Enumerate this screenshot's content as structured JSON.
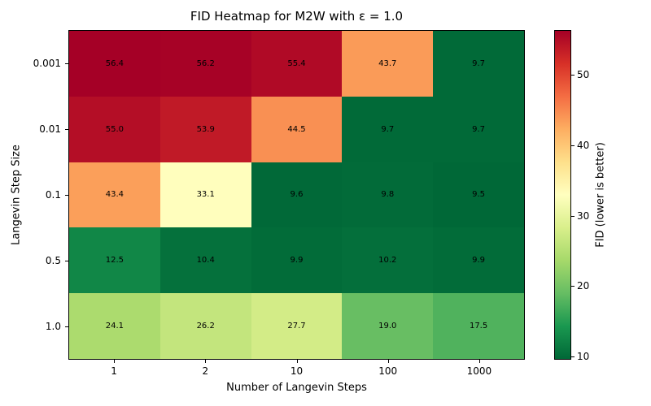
{
  "chart_data": {
    "type": "heatmap",
    "title": "FID Heatmap for M2W with ε = 1.0",
    "xlabel": "Number of Langevin Steps",
    "ylabel": "Langevin Step Size",
    "x_ticklabels": [
      "1",
      "2",
      "10",
      "100",
      "1000"
    ],
    "y_ticklabels": [
      "0.001",
      "0.01",
      "0.1",
      "0.5",
      "1.0"
    ],
    "values": [
      [
        56.4,
        56.2,
        55.4,
        43.7,
        9.7
      ],
      [
        55.0,
        53.9,
        44.5,
        9.7,
        9.7
      ],
      [
        43.4,
        33.1,
        9.6,
        9.8,
        9.5
      ],
      [
        12.5,
        10.4,
        9.9,
        10.2,
        9.9
      ],
      [
        24.1,
        26.2,
        27.7,
        19.0,
        17.5
      ]
    ],
    "vmin": 9.5,
    "vmax": 56.4,
    "colormap": {
      "name": "RdYlGn_r",
      "anchors": [
        "#006837",
        "#1a9850",
        "#66bd63",
        "#a6d96a",
        "#d9ef8b",
        "#ffffbf",
        "#fee08b",
        "#fdae61",
        "#f46d43",
        "#d73027",
        "#a50026"
      ]
    },
    "colorbar": {
      "label": "FID (lower is better)",
      "ticks": [
        10,
        20,
        30,
        40,
        50
      ]
    },
    "annotation_color": "#000000",
    "background_color": "#ffffff",
    "grid": false,
    "legend": false
  }
}
